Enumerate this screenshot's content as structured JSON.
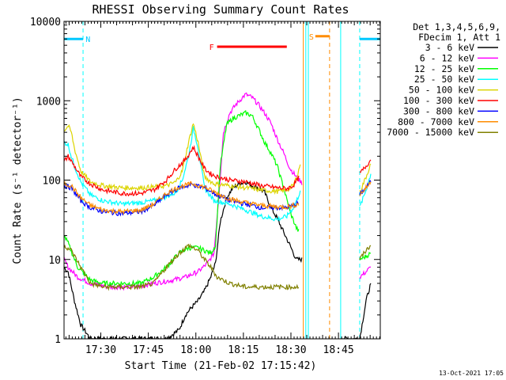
{
  "chart_data": {
    "type": "line",
    "title": "RHESSI Observing Summary Count Rates",
    "xlabel": "Start Time (21-Feb-02 17:15:42)",
    "ylabel": "Count Rate (s⁻¹ detector⁻¹)",
    "y_scale": "log",
    "ylim": [
      1,
      10000
    ],
    "xlim_minutes": [
      17.7,
      117.5
    ],
    "x_tick_labels": [
      "17:30",
      "17:45",
      "18:00",
      "18:15",
      "18:30",
      "18:45"
    ],
    "x_tick_minutes": [
      29.3,
      44.3,
      59.3,
      74.3,
      89.3,
      104.3
    ],
    "y_tick_labels": [
      "1",
      "10",
      "100",
      "1000",
      "10000"
    ],
    "y_tick_values": [
      1,
      10,
      100,
      1000,
      10000
    ],
    "grid": false,
    "legend_position": "right",
    "legend_header": [
      "Det 1,3,4,5,6,9,",
      "FDecim 1, Att 1"
    ],
    "series": [
      {
        "name": "3 - 6 keV",
        "color": "#000000",
        "points": [
          [
            17.7,
            8
          ],
          [
            19,
            7
          ],
          [
            21,
            3
          ],
          [
            23,
            1.5
          ],
          [
            26,
            1
          ],
          [
            30,
            1
          ],
          [
            35,
            1
          ],
          [
            40,
            1
          ],
          [
            45,
            1
          ],
          [
            50,
            1
          ],
          [
            54,
            1.3
          ],
          [
            56,
            2
          ],
          [
            58,
            2.5
          ],
          [
            60,
            3
          ],
          [
            62,
            4
          ],
          [
            64,
            6
          ],
          [
            65.5,
            9
          ],
          [
            67,
            30
          ],
          [
            69,
            60
          ],
          [
            71,
            80
          ],
          [
            73,
            90
          ],
          [
            75,
            95
          ],
          [
            77,
            85
          ],
          [
            79,
            80
          ],
          [
            81,
            70
          ],
          [
            83,
            45
          ],
          [
            85,
            33
          ],
          [
            87,
            22
          ],
          [
            89,
            15
          ],
          [
            91,
            10
          ],
          [
            93,
            10
          ],
          [
            105,
            1
          ],
          [
            111,
            1
          ],
          [
            113,
            3
          ],
          [
            114.5,
            5
          ]
        ]
      },
      {
        "name": "6 - 12 keV",
        "color": "#ff00ff",
        "points": [
          [
            17.7,
            10
          ],
          [
            19,
            8
          ],
          [
            22,
            6
          ],
          [
            26,
            5
          ],
          [
            32,
            4.5
          ],
          [
            40,
            4.5
          ],
          [
            46,
            5
          ],
          [
            52,
            5.5
          ],
          [
            56,
            6
          ],
          [
            60,
            7
          ],
          [
            63,
            9
          ],
          [
            65,
            12
          ],
          [
            66.5,
            60
          ],
          [
            68,
            400
          ],
          [
            70,
            700
          ],
          [
            72,
            900
          ],
          [
            74,
            1100
          ],
          [
            75,
            1200
          ],
          [
            77,
            1100
          ],
          [
            79,
            900
          ],
          [
            81,
            700
          ],
          [
            83,
            520
          ],
          [
            85,
            330
          ],
          [
            87,
            220
          ],
          [
            89,
            140
          ],
          [
            91,
            110
          ],
          [
            93,
            90
          ],
          [
            111,
            6
          ],
          [
            113,
            7
          ],
          [
            114.5,
            8
          ]
        ]
      },
      {
        "name": "12 - 25 keV",
        "color": "#00ff00",
        "points": [
          [
            17.7,
            20
          ],
          [
            19,
            16
          ],
          [
            22,
            8
          ],
          [
            26,
            5.5
          ],
          [
            30,
            5
          ],
          [
            36,
            5
          ],
          [
            42,
            5
          ],
          [
            46,
            6
          ],
          [
            50,
            8
          ],
          [
            54,
            12
          ],
          [
            57,
            14
          ],
          [
            60,
            14
          ],
          [
            62,
            13
          ],
          [
            64,
            12
          ],
          [
            65.5,
            15
          ],
          [
            67,
            150
          ],
          [
            69,
            500
          ],
          [
            71,
            600
          ],
          [
            73,
            650
          ],
          [
            75,
            700
          ],
          [
            77,
            650
          ],
          [
            79,
            450
          ],
          [
            81,
            300
          ],
          [
            83,
            220
          ],
          [
            85,
            150
          ],
          [
            87,
            80
          ],
          [
            89,
            40
          ],
          [
            91,
            25
          ],
          [
            92,
            22
          ],
          [
            111,
            10
          ],
          [
            113,
            11
          ],
          [
            114.5,
            12
          ]
        ]
      },
      {
        "name": "25 - 50 keV",
        "color": "#00ffff",
        "points": [
          [
            17.7,
            300
          ],
          [
            19,
            280
          ],
          [
            20,
            200
          ],
          [
            21,
            150
          ],
          [
            23,
            95
          ],
          [
            26,
            65
          ],
          [
            30,
            55
          ],
          [
            36,
            50
          ],
          [
            42,
            52
          ],
          [
            46,
            55
          ],
          [
            50,
            62
          ],
          [
            53,
            70
          ],
          [
            55,
            100
          ],
          [
            57,
            200
          ],
          [
            58.5,
            450
          ],
          [
            60,
            260
          ],
          [
            62,
            80
          ],
          [
            65,
            55
          ],
          [
            70,
            50
          ],
          [
            75,
            42
          ],
          [
            80,
            35
          ],
          [
            85,
            32
          ],
          [
            88,
            35
          ],
          [
            90,
            45
          ],
          [
            91.5,
            60
          ],
          [
            92.5,
            80
          ],
          [
            111,
            45
          ],
          [
            113,
            75
          ],
          [
            114.5,
            120
          ]
        ]
      },
      {
        "name": "50 - 100 keV",
        "color": "#dcd400",
        "points": [
          [
            17.7,
            420
          ],
          [
            19,
            480
          ],
          [
            20,
            400
          ],
          [
            21,
            250
          ],
          [
            23,
            130
          ],
          [
            26,
            95
          ],
          [
            30,
            85
          ],
          [
            36,
            80
          ],
          [
            42,
            80
          ],
          [
            46,
            82
          ],
          [
            50,
            85
          ],
          [
            53,
            95
          ],
          [
            55,
            130
          ],
          [
            57,
            300
          ],
          [
            58.5,
            520
          ],
          [
            60,
            300
          ],
          [
            62,
            110
          ],
          [
            65,
            90
          ],
          [
            70,
            85
          ],
          [
            75,
            80
          ],
          [
            80,
            75
          ],
          [
            85,
            72
          ],
          [
            88,
            75
          ],
          [
            90,
            85
          ],
          [
            91.5,
            120
          ],
          [
            92.5,
            180
          ],
          [
            111,
            70
          ],
          [
            113,
            110
          ],
          [
            114.5,
            160
          ]
        ]
      },
      {
        "name": "100 - 300 keV",
        "color": "#ff0000",
        "points": [
          [
            17.7,
            170
          ],
          [
            19,
            200
          ],
          [
            21,
            150
          ],
          [
            23,
            110
          ],
          [
            26,
            90
          ],
          [
            30,
            75
          ],
          [
            36,
            68
          ],
          [
            42,
            68
          ],
          [
            46,
            75
          ],
          [
            50,
            100
          ],
          [
            53,
            140
          ],
          [
            56,
            180
          ],
          [
            58.5,
            260
          ],
          [
            60,
            200
          ],
          [
            62,
            140
          ],
          [
            64,
            120
          ],
          [
            66,
            110
          ],
          [
            70,
            100
          ],
          [
            75,
            95
          ],
          [
            80,
            85
          ],
          [
            85,
            80
          ],
          [
            88,
            78
          ],
          [
            90,
            85
          ],
          [
            92,
            110
          ],
          [
            111,
            120
          ],
          [
            113,
            150
          ],
          [
            114.5,
            180
          ]
        ]
      },
      {
        "name": "300 - 800 keV",
        "color": "#0000ff",
        "points": [
          [
            17.7,
            85
          ],
          [
            20,
            80
          ],
          [
            23,
            55
          ],
          [
            26,
            45
          ],
          [
            30,
            40
          ],
          [
            36,
            38
          ],
          [
            42,
            40
          ],
          [
            46,
            48
          ],
          [
            50,
            65
          ],
          [
            54,
            80
          ],
          [
            58,
            88
          ],
          [
            62,
            80
          ],
          [
            66,
            65
          ],
          [
            70,
            55
          ],
          [
            75,
            50
          ],
          [
            80,
            45
          ],
          [
            85,
            45
          ],
          [
            88,
            45
          ],
          [
            90,
            48
          ],
          [
            92,
            52
          ],
          [
            111,
            65
          ],
          [
            113,
            80
          ],
          [
            114.5,
            95
          ]
        ]
      },
      {
        "name": "800 - 7000 keV",
        "color": "#ff8c00",
        "points": [
          [
            17.7,
            90
          ],
          [
            20,
            85
          ],
          [
            23,
            60
          ],
          [
            26,
            48
          ],
          [
            30,
            42
          ],
          [
            36,
            40
          ],
          [
            42,
            42
          ],
          [
            46,
            50
          ],
          [
            50,
            68
          ],
          [
            54,
            82
          ],
          [
            58,
            90
          ],
          [
            62,
            82
          ],
          [
            66,
            68
          ],
          [
            70,
            58
          ],
          [
            75,
            52
          ],
          [
            80,
            48
          ],
          [
            85,
            46
          ],
          [
            88,
            46
          ],
          [
            90,
            48
          ],
          [
            92,
            50
          ],
          [
            111,
            65
          ],
          [
            113,
            80
          ],
          [
            114.5,
            95
          ]
        ]
      },
      {
        "name": "7000 - 15000 keV",
        "color": "#808000",
        "points": [
          [
            17.7,
            15
          ],
          [
            20,
            13
          ],
          [
            23,
            8
          ],
          [
            26,
            5
          ],
          [
            30,
            4.5
          ],
          [
            36,
            4.5
          ],
          [
            42,
            4.5
          ],
          [
            46,
            5
          ],
          [
            50,
            8
          ],
          [
            54,
            12
          ],
          [
            57,
            15
          ],
          [
            60,
            13
          ],
          [
            62,
            10
          ],
          [
            64,
            8
          ],
          [
            66,
            6
          ],
          [
            70,
            5
          ],
          [
            75,
            4.5
          ],
          [
            80,
            4.5
          ],
          [
            85,
            4.5
          ],
          [
            88,
            4.5
          ],
          [
            90,
            4.5
          ],
          [
            92,
            4.5
          ],
          [
            111,
            10
          ],
          [
            113,
            13
          ],
          [
            114.5,
            15
          ]
        ]
      }
    ],
    "annotations": [
      {
        "label": "N",
        "color": "#00c8ff",
        "y": 6000,
        "segments": [
          [
            17.7,
            23.7
          ],
          [
            111,
            117.5
          ]
        ],
        "label_x": 24.5
      },
      {
        "label": "F",
        "color": "#ff0000",
        "y": 4800,
        "segments": [
          [
            66,
            88
          ]
        ],
        "label_x": 63.5
      },
      {
        "label": "S",
        "color": "#ff8c00",
        "y": 6500,
        "segments": [
          [
            97,
            101.5
          ]
        ],
        "label_x": 95
      }
    ],
    "vertical_markers": [
      {
        "x": 17.7,
        "color": "#00ffff",
        "style": "solid"
      },
      {
        "x": 23.7,
        "color": "#00ffff",
        "style": "dashed"
      },
      {
        "x": 93.2,
        "color": "#ff8c00",
        "style": "solid"
      },
      {
        "x": 94.0,
        "color": "#00ffff",
        "style": "solid"
      },
      {
        "x": 94.8,
        "color": "#00ffff",
        "style": "solid"
      },
      {
        "x": 101.5,
        "color": "#ff8c00",
        "style": "dashed"
      },
      {
        "x": 105.0,
        "color": "#00ffff",
        "style": "solid"
      },
      {
        "x": 111.0,
        "color": "#00ffff",
        "style": "dashed"
      }
    ]
  },
  "timestamp": "13-Oct-2021 17:05"
}
